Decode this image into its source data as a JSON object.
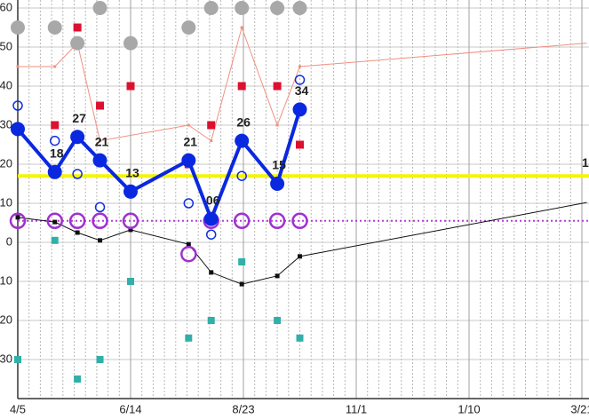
{
  "chart_data": {
    "type": "line",
    "xlim": [
      "4/5",
      "3/21"
    ],
    "xticks": [
      "4/5",
      "6/14",
      "8/23",
      "11/1",
      "1/10",
      "3/21"
    ],
    "ylim": [
      -40,
      60
    ],
    "yticks": [
      -30,
      -20,
      -10,
      0,
      10,
      20,
      30,
      40,
      50,
      60
    ],
    "grid": true,
    "hlines": [
      {
        "value": 17,
        "color": "#f5f500",
        "style": "solid",
        "label": true
      },
      {
        "value": 5.5,
        "color": "#b040d0",
        "style": "dotted"
      }
    ],
    "series": [
      {
        "color": "#f09080",
        "line": true,
        "width": 1,
        "marker": "square",
        "size": 3,
        "x": [
          "4/5",
          "4/28",
          "5/12",
          "5/26",
          "7/20",
          "8/3",
          "8/22",
          "9/13",
          "9/27",
          "3/24"
        ],
        "values": [
          45,
          45,
          51,
          26,
          30,
          26,
          55,
          30,
          45,
          51
        ]
      },
      {
        "color": "#dd1030",
        "line": false,
        "marker": "square",
        "size": 9,
        "x": [
          "4/5",
          "4/28",
          "5/12",
          "5/26",
          "6/14",
          "7/20",
          "8/3",
          "8/22",
          "9/13",
          "9/27"
        ],
        "values": [
          55,
          30,
          55,
          35,
          40,
          20,
          30,
          40,
          40,
          25
        ]
      },
      {
        "color": "#a8a8a8",
        "line": false,
        "marker": "circle",
        "size": 8,
        "x": [
          "4/5",
          "4/28",
          "5/12",
          "5/26",
          "6/14",
          "7/20",
          "8/3",
          "8/22",
          "9/13",
          "9/27"
        ],
        "values": [
          55,
          55,
          51,
          60,
          51,
          55,
          60,
          60,
          60,
          60
        ]
      },
      {
        "color": "#1030e0",
        "line": false,
        "marker": "open-circle",
        "size": 5,
        "x": [
          "4/5",
          "4/28",
          "5/12",
          "5/26",
          "6/14",
          "7/20",
          "8/3",
          "8/22",
          "9/13",
          "9/27"
        ],
        "values": [
          35,
          26,
          17.5,
          9,
          null,
          10,
          2,
          17,
          null,
          41.6
        ]
      },
      {
        "color": "#101010",
        "line": true,
        "width": 1,
        "marker": "square",
        "size": 5,
        "x": [
          "4/5",
          "4/28",
          "5/12",
          "5/26",
          "6/14",
          "7/20",
          "8/3",
          "8/22",
          "9/13",
          "9/27",
          "3/24"
        ],
        "values": [
          6.4,
          5.2,
          2.5,
          0.5,
          3.2,
          -0.5,
          -7.7,
          -10.7,
          -8.6,
          -3.6,
          10.2
        ]
      },
      {
        "color": "#30b0a8",
        "line": false,
        "marker": "square",
        "size": 8,
        "x": [
          "4/5",
          "4/28",
          "5/12",
          "5/26",
          "6/14",
          "7/20",
          "8/3",
          "8/22",
          "9/13",
          "9/27"
        ],
        "values": [
          -30,
          0.5,
          -35,
          -30,
          -10,
          -24.5,
          -20,
          -5,
          -20,
          -24.5
        ]
      },
      {
        "color": "#a030d0",
        "line": false,
        "marker": "open-circle",
        "size": 8,
        "x": [
          "4/5",
          "4/28",
          "5/12",
          "5/26",
          "6/14",
          "7/20",
          "8/3",
          "8/22",
          "9/13",
          "9/27"
        ],
        "values": [
          5.5,
          5.5,
          5.5,
          5.5,
          5.5,
          -3,
          5.5,
          5.5,
          5.5,
          5.5
        ]
      },
      {
        "color": "#0a28e0",
        "line": true,
        "width": 4,
        "marker": "circle",
        "size": 8,
        "x": [
          "4/5",
          "4/28",
          "5/12",
          "5/26",
          "6/14",
          "7/20",
          "8/3",
          "8/22",
          "9/13",
          "9/27"
        ],
        "values": [
          29,
          18,
          27,
          21,
          13,
          21,
          6,
          26,
          15,
          34
        ],
        "value_labels": [
          null,
          "18",
          "27",
          "21",
          "13",
          "21",
          "06",
          "26",
          "15",
          "34"
        ]
      }
    ]
  }
}
